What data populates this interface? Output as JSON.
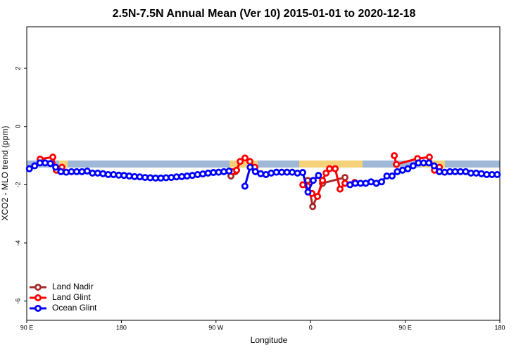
{
  "chart_data": {
    "type": "line",
    "title": "2.5N-7.5N Annual Mean (Ver 10)   2015-01-01 to 2020-12-18",
    "x_label": "Longitude",
    "y_label": "XCO2 - MLO trend (ppm)",
    "xlim": [
      90,
      540
    ],
    "ylim": [
      -6.66,
      3.43
    ],
    "xticks": [
      {
        "value": 90,
        "label": "90 E"
      },
      180,
      {
        "value": 270,
        "label": "90 W"
      },
      {
        "value": 360,
        "label": "0"
      },
      {
        "value": 450,
        "label": "90 E"
      },
      {
        "value": 540,
        "label": "180"
      }
    ],
    "yticks": [
      -6,
      -4,
      -2,
      0,
      2
    ],
    "legend": "lower left",
    "series": [
      {
        "name": "Land Nadir",
        "color": "#a52a2a",
        "x": [
          284.2,
          288.3,
          300,
          357.3,
          362,
          371.3,
          392.7
        ],
        "values": [
          -1.7,
          -1.55,
          null,
          -1.85,
          -2.75,
          -1.95,
          -1.75
        ]
      },
      {
        "name": "Land Glint",
        "color": "#ff0000",
        "x": [
          102.7,
          114.8,
          118.1,
          123.5,
          200,
          285.6,
          289.6,
          293,
          297.6,
          302.3,
          307,
          330,
          352.6,
          357.3,
          361.3,
          366.6,
          371.3,
          374.7,
          378,
          383.4,
          388,
          392.7,
          402,
          420,
          439.6,
          441.6,
          461.7,
          473,
          477.8,
          482.5
        ],
        "values": [
          -1.12,
          -1.05,
          -1.5,
          -1.4,
          null,
          -1.55,
          -1.5,
          -1.2,
          -1.08,
          -1.2,
          -1.4,
          null,
          -2.0,
          -2.05,
          -2.3,
          -2.4,
          -1.85,
          -1.6,
          -1.45,
          -1.45,
          -2.15,
          -1.95,
          -1.92,
          null,
          -1.0,
          -1.3,
          -1.1,
          -1.05,
          -1.5,
          -1.4
        ]
      },
      {
        "name": "Ocean Glint",
        "color": "#0000ff",
        "x": [
          92.5,
          97.5,
          102.5,
          107.5,
          112.5,
          117.5,
          122.5,
          127.5,
          132.5,
          137.5,
          142.5,
          147.5,
          152.5,
          157.5,
          162.5,
          167.5,
          172.5,
          177.5,
          182.5,
          187.5,
          192.5,
          197.5,
          202.5,
          207.5,
          212.5,
          217.5,
          222.5,
          227.5,
          232.5,
          237.5,
          242.5,
          247.5,
          252.5,
          257.5,
          262.5,
          267.5,
          272.5,
          277.5,
          282.5,
          287.5,
          292.5,
          297.5,
          302.5,
          307.5,
          312.5,
          317.5,
          322.5,
          327.5,
          332.5,
          337.5,
          342.5,
          347.5,
          352.5,
          357.5,
          362.5,
          367.5,
          372.5,
          377.5,
          382.5,
          387.5,
          392.5,
          397.5,
          402.5,
          407.5,
          412.5,
          417.5,
          422.5,
          427.5,
          432.5,
          437.5,
          442.5,
          447.5,
          452.5,
          457.5,
          462.5,
          467.5,
          472.5,
          477.5,
          482.5,
          487.5,
          492.5,
          497.5,
          502.5,
          507.5,
          512.5,
          517.5,
          522.5,
          527.5,
          532.5,
          537.5
        ],
        "values": [
          -1.45,
          -1.35,
          -1.25,
          -1.25,
          -1.27,
          -1.4,
          -1.55,
          -1.57,
          -1.55,
          -1.55,
          -1.55,
          -1.53,
          -1.6,
          -1.6,
          -1.62,
          -1.65,
          -1.65,
          -1.67,
          -1.68,
          -1.7,
          -1.72,
          -1.73,
          -1.75,
          -1.76,
          -1.77,
          -1.77,
          -1.76,
          -1.75,
          -1.73,
          -1.72,
          -1.7,
          -1.68,
          -1.65,
          -1.63,
          -1.6,
          -1.58,
          -1.57,
          -1.55,
          -1.53,
          null,
          null,
          -2.05,
          -1.4,
          -1.55,
          -1.62,
          -1.65,
          -1.6,
          -1.57,
          -1.57,
          -1.57,
          -1.57,
          -1.6,
          -1.58,
          -2.25,
          -1.85,
          -1.68,
          null,
          null,
          null,
          null,
          null,
          -2.0,
          -1.95,
          -1.95,
          -1.95,
          -1.9,
          -1.95,
          -1.9,
          -1.7,
          -1.7,
          -1.55,
          -1.5,
          -1.45,
          -1.35,
          -1.25,
          -1.25,
          -1.25,
          -1.35,
          -1.55,
          -1.57,
          -1.55,
          -1.55,
          -1.55,
          -1.55,
          -1.6,
          -1.6,
          -1.62,
          -1.65,
          -1.65,
          -1.65
        ]
      }
    ]
  }
}
